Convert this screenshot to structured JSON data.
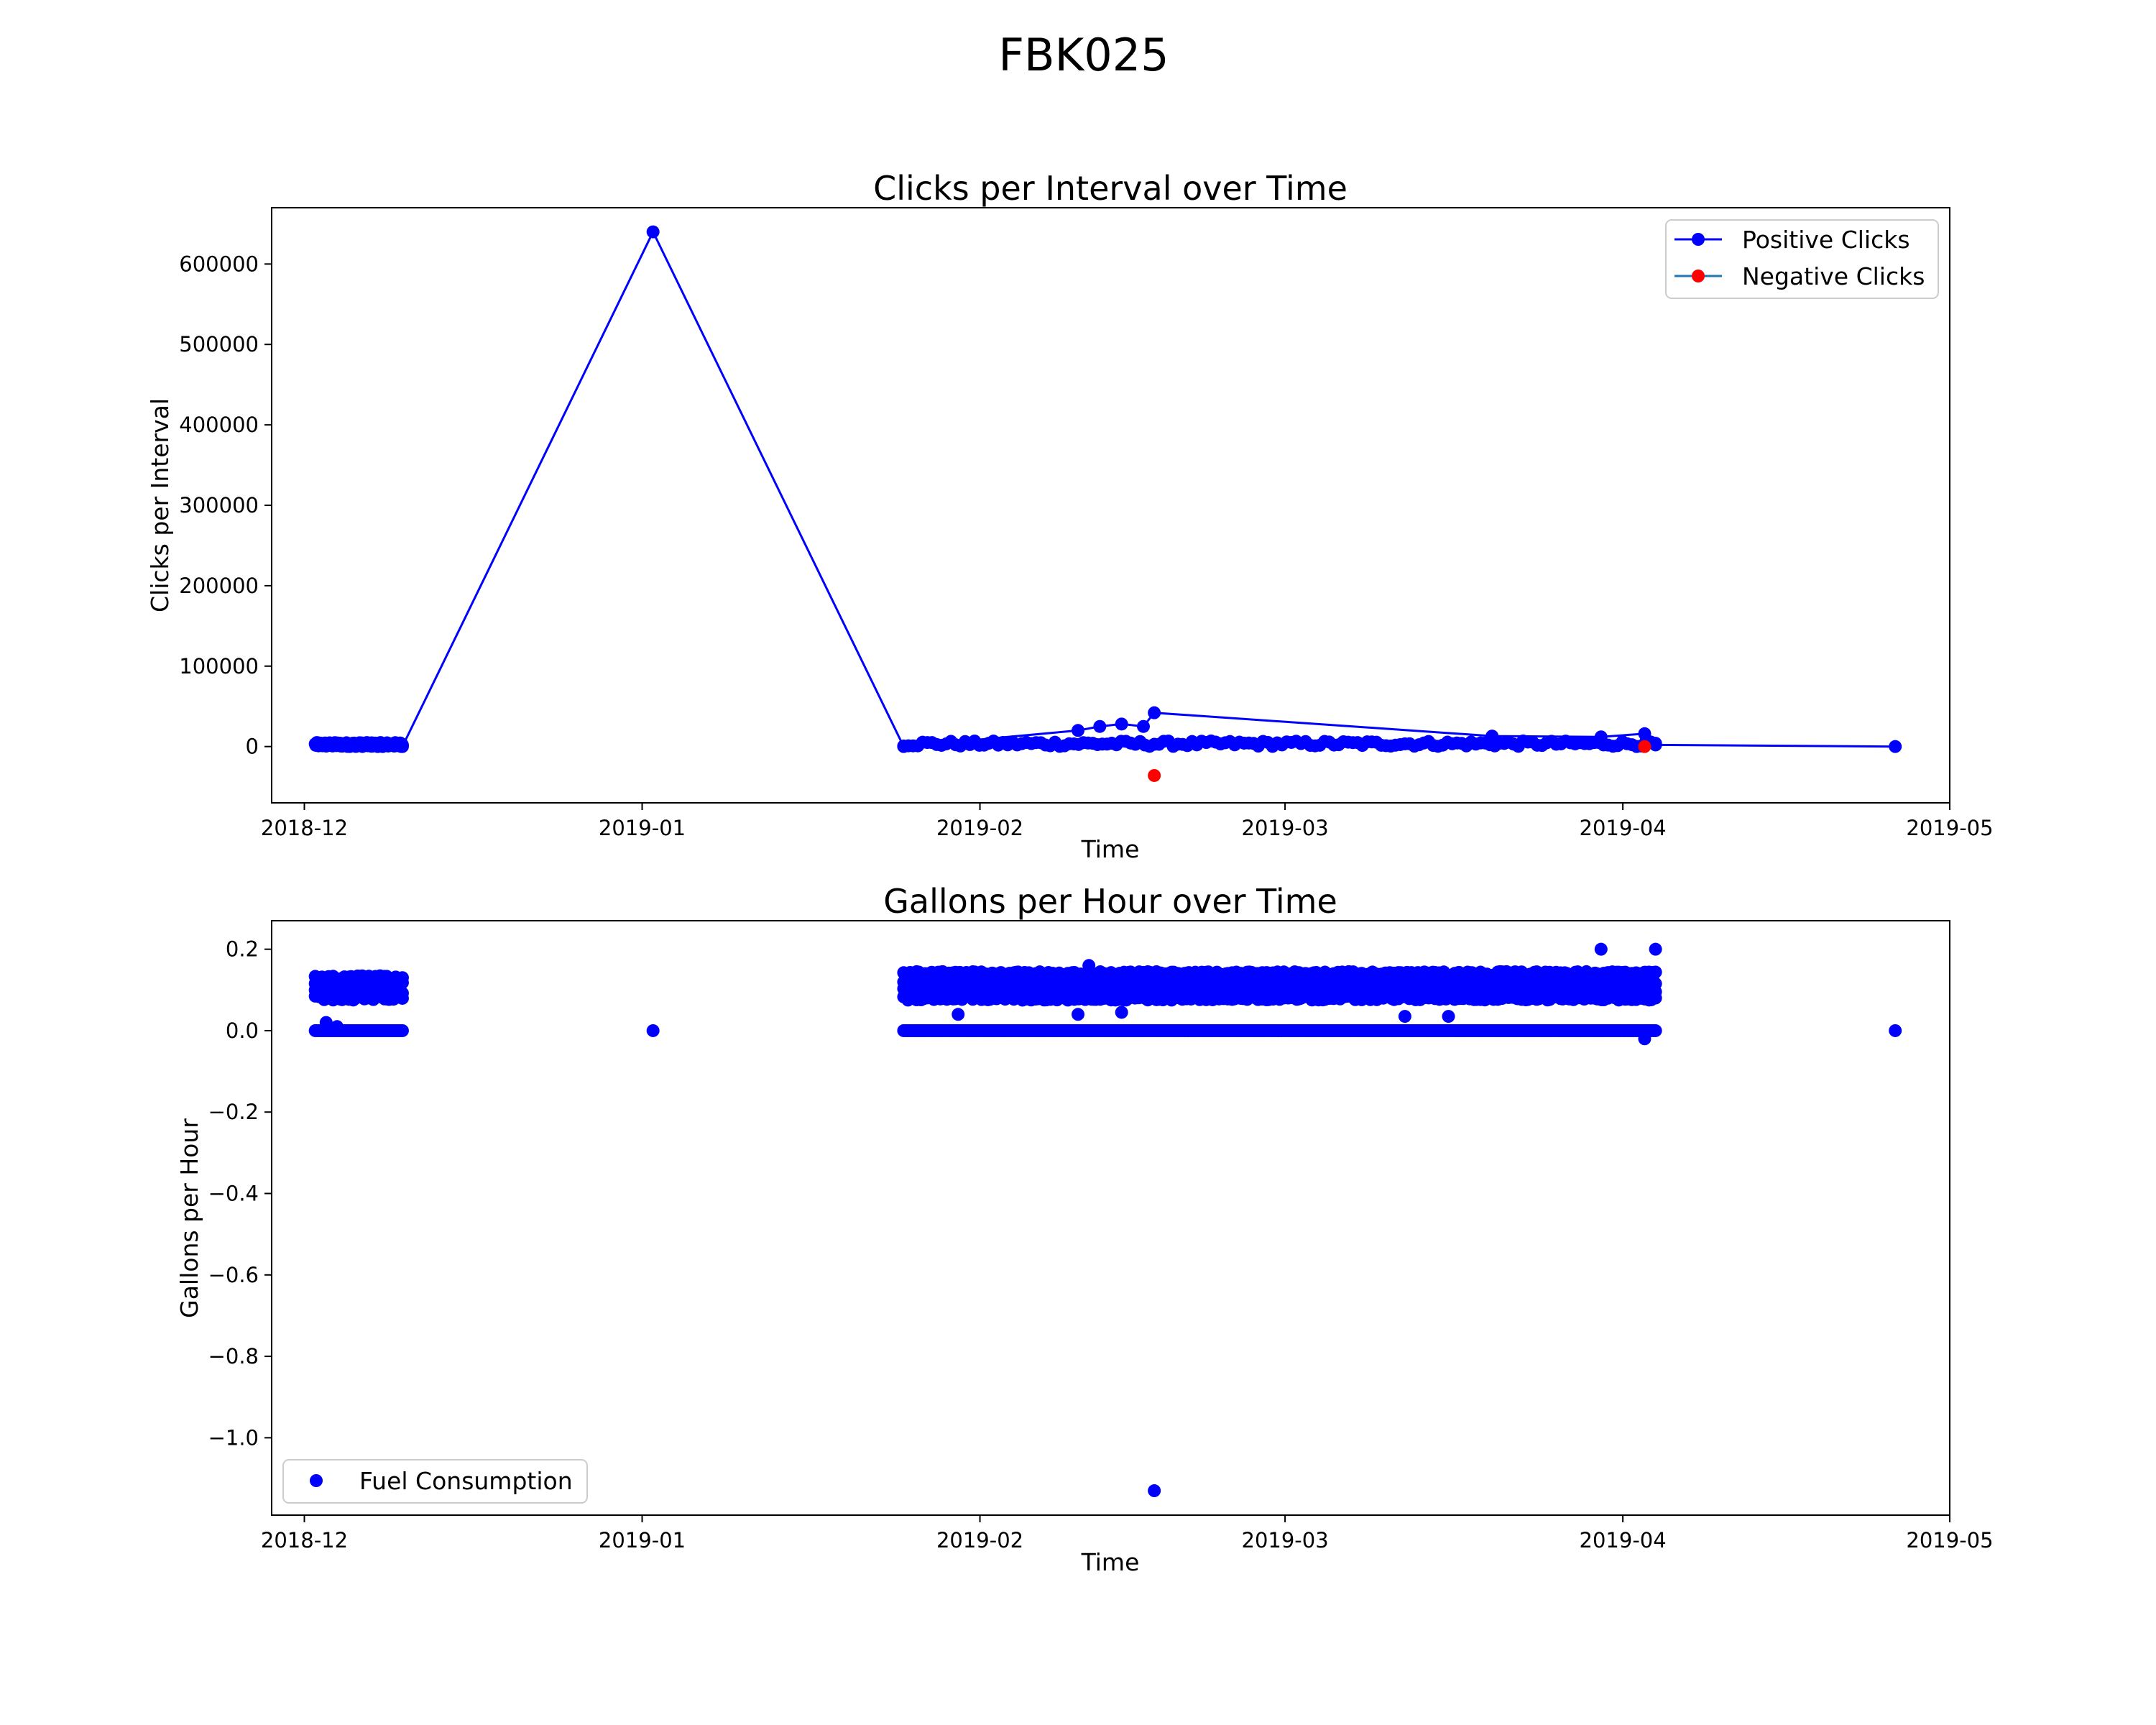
{
  "figure": {
    "title": "FBK025"
  },
  "colors": {
    "positive": "#0000ff",
    "negative": "#ff0000",
    "fuel": "#0000ff",
    "axes": "#000000",
    "legend_border": "#cccccc"
  },
  "chart_data": [
    {
      "type": "line",
      "title": "Clicks per Interval over Time",
      "xlabel": "Time",
      "ylabel": "Clicks per Interval",
      "xlim": [
        "2018-11-28",
        "2019-05-01"
      ],
      "ylim": [
        -70000,
        670000
      ],
      "x_ticks": [
        "2018-12",
        "2019-01",
        "2019-02",
        "2019-03",
        "2019-04",
        "2019-05"
      ],
      "y_ticks": [
        0,
        100000,
        200000,
        300000,
        400000,
        500000,
        600000
      ],
      "legend": {
        "placement": "top-right",
        "entries": [
          "Positive Clicks",
          "Negative Clicks"
        ]
      },
      "series": [
        {
          "name": "Positive Clicks",
          "color": "#0000ff",
          "marker": "circle",
          "line": true,
          "segments": [
            {
              "x_start": "2018-12-02",
              "x_end": "2018-12-10",
              "y_min": 0,
              "y_max": 5000
            },
            {
              "x_start": "2019-01-25",
              "x_end": "2019-04-04",
              "y_min": 0,
              "y_max": 7000
            }
          ],
          "points": [
            {
              "x": "2018-12-10",
              "y": 0
            },
            {
              "x": "2019-01-02",
              "y": 640000
            },
            {
              "x": "2019-01-25",
              "y": 0
            },
            {
              "x": "2019-02-10",
              "y": 20000
            },
            {
              "x": "2019-02-12",
              "y": 25000
            },
            {
              "x": "2019-02-14",
              "y": 28000
            },
            {
              "x": "2019-02-16",
              "y": 25000
            },
            {
              "x": "2019-02-17",
              "y": 42000
            },
            {
              "x": "2019-03-20",
              "y": 13000
            },
            {
              "x": "2019-03-30",
              "y": 12000
            },
            {
              "x": "2019-04-03",
              "y": 16000
            },
            {
              "x": "2019-04-04",
              "y": 2000
            },
            {
              "x": "2019-04-26",
              "y": 0
            }
          ]
        },
        {
          "name": "Negative Clicks",
          "color": "#ff0000",
          "marker": "circle",
          "line": false,
          "points": [
            {
              "x": "2019-02-17",
              "y": -36000
            },
            {
              "x": "2019-04-03",
              "y": 0
            }
          ]
        }
      ]
    },
    {
      "type": "scatter",
      "title": "Gallons per Hour over Time",
      "xlabel": "Time",
      "ylabel": "Gallons per Hour",
      "xlim": [
        "2018-11-28",
        "2019-05-01"
      ],
      "ylim": [
        -1.19,
        0.27
      ],
      "x_ticks": [
        "2018-12",
        "2019-01",
        "2019-02",
        "2019-03",
        "2019-04",
        "2019-05"
      ],
      "y_ticks": [
        "0.2",
        "0.0",
        "−0.2",
        "−0.4",
        "−0.6",
        "−0.8",
        "−1.0"
      ],
      "legend": {
        "placement": "bottom-left",
        "entries": [
          "Fuel Consumption"
        ]
      },
      "series": [
        {
          "name": "Fuel Consumption",
          "color": "#0000ff",
          "marker": "circle",
          "bands": [
            {
              "x_start": "2018-12-02",
              "x_end": "2018-12-10",
              "y_min": 0.08,
              "y_max": 0.13
            },
            {
              "x_start": "2018-12-02",
              "x_end": "2018-12-10",
              "y_min": 0.0,
              "y_max": 0.0
            },
            {
              "x_start": "2019-01-25",
              "x_end": "2019-04-04",
              "y_min": 0.08,
              "y_max": 0.14
            },
            {
              "x_start": "2019-01-25",
              "x_end": "2019-04-04",
              "y_min": 0.0,
              "y_max": 0.0
            }
          ],
          "points": [
            {
              "x": "2018-12-03",
              "y": 0.02
            },
            {
              "x": "2018-12-04",
              "y": 0.01
            },
            {
              "x": "2019-01-02",
              "y": 0.0
            },
            {
              "x": "2019-01-30",
              "y": 0.04
            },
            {
              "x": "2019-02-10",
              "y": 0.04
            },
            {
              "x": "2019-02-11",
              "y": 0.16
            },
            {
              "x": "2019-02-14",
              "y": 0.045
            },
            {
              "x": "2019-02-17",
              "y": -1.13
            },
            {
              "x": "2019-03-12",
              "y": 0.035
            },
            {
              "x": "2019-03-16",
              "y": 0.035
            },
            {
              "x": "2019-03-30",
              "y": 0.2
            },
            {
              "x": "2019-04-03",
              "y": -0.02
            },
            {
              "x": "2019-04-04",
              "y": 0.2
            },
            {
              "x": "2019-04-26",
              "y": 0.0
            }
          ]
        }
      ]
    }
  ]
}
